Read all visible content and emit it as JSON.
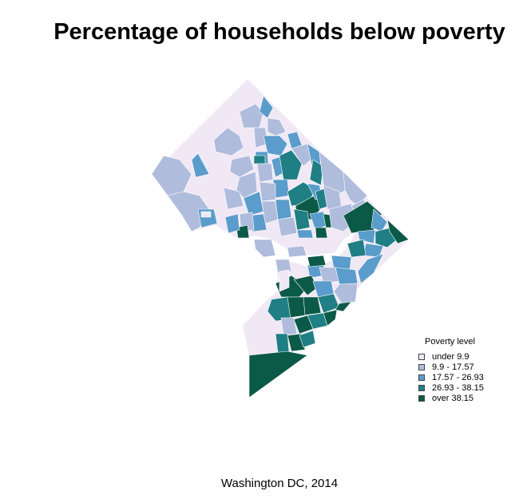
{
  "title": "Percentage of households below poverty",
  "caption": "Washington DC, 2014",
  "legend": {
    "title": "Poverty level",
    "items": [
      {
        "label": "under 9.9",
        "color": "#f1e8f5"
      },
      {
        "label": "9.9 - 17.57",
        "color": "#b0bcdc"
      },
      {
        "label": "17.57 - 26.93",
        "color": "#5a9ccb"
      },
      {
        "label": "26.93 - 38.15",
        "color": "#1f7f84"
      },
      {
        "label": "over 38.15",
        "color": "#0b5a47"
      }
    ]
  },
  "colors": {
    "background": "#ffffff",
    "border": "#ffffff"
  }
}
